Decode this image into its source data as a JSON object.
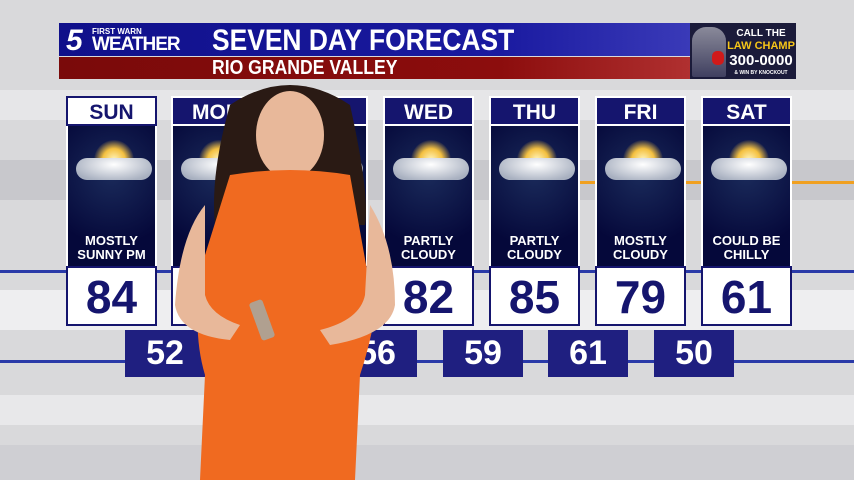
{
  "header": {
    "logo_number": "5",
    "logo_tagline": "FIRST WARN",
    "logo_word": "WEATHER",
    "title": "SEVEN DAY FORECAST",
    "subtitle": "RIO GRANDE VALLEY"
  },
  "ad": {
    "line1": "CALL THE",
    "line2": "LAW CHAMP",
    "line3": "300-0000",
    "line4": "& WIN BY KNOCKOUT"
  },
  "colors": {
    "navy": "#15156e",
    "header_blue": "#1a1aa0",
    "header_red": "#8c0d0d",
    "dress_orange": "#f06a20"
  },
  "days": [
    {
      "day": "SUN",
      "condition1": "MOSTLY",
      "condition2": "SUNNY PM",
      "high": "84",
      "icon": "partly-sunny-icon"
    },
    {
      "day": "MON",
      "condition1": "",
      "condition2": "",
      "high": "",
      "icon": "partly-sunny-icon"
    },
    {
      "day": "",
      "condition1": "",
      "condition2": "",
      "high": "",
      "icon": "partly-sunny-icon"
    },
    {
      "day": "WED",
      "condition1": "PARTLY",
      "condition2": "CLOUDY",
      "high": "82",
      "icon": "partly-cloudy-icon"
    },
    {
      "day": "THU",
      "condition1": "PARTLY",
      "condition2": "CLOUDY",
      "high": "85",
      "icon": "partly-cloudy-icon"
    },
    {
      "day": "FRI",
      "condition1": "MOSTLY",
      "condition2": "CLOUDY",
      "high": "79",
      "icon": "mostly-cloudy-icon"
    },
    {
      "day": "SAT",
      "condition1": "COULD BE",
      "condition2": "CHILLY",
      "high": "61",
      "icon": "partly-sunny-icon"
    }
  ],
  "lows": [
    "52",
    "",
    "56",
    "59",
    "61",
    "50"
  ]
}
